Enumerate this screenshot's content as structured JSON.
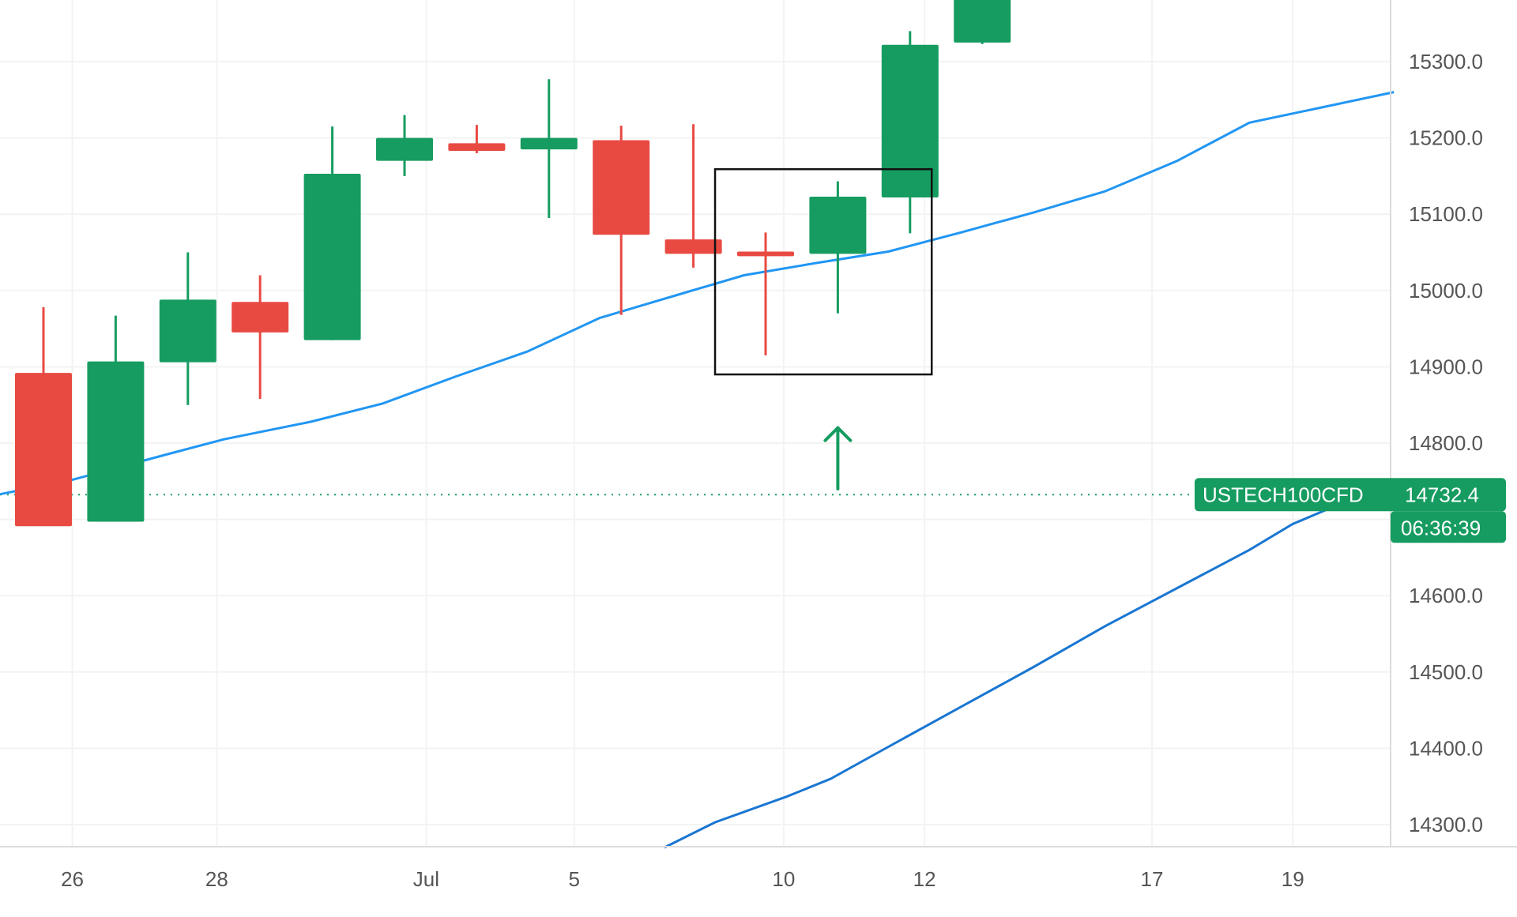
{
  "chart_data": {
    "type": "candlestick",
    "symbol": "USTECH100CFD",
    "last_price": 14732.4,
    "last_price_label": "14732.4",
    "countdown": "06:36:39",
    "ylim": [
      14270,
      15380
    ],
    "y_ticks": [
      14300,
      14400,
      14500,
      14600,
      14800,
      14900,
      15000,
      15100,
      15200,
      15300
    ],
    "y_tick_labels": [
      "14300.0",
      "14400.0",
      "14500.0",
      "14600.0",
      "14800.0",
      "14900.0",
      "15000.0",
      "15100.0",
      "15200.0",
      "15300.0"
    ],
    "x_ticks": [
      {
        "label": "26",
        "x": 0.4
      },
      {
        "label": "28",
        "x": 2.4
      },
      {
        "label": "Jul",
        "x": 5.3
      },
      {
        "label": "5",
        "x": 7.35
      },
      {
        "label": "10",
        "x": 10.25
      },
      {
        "label": "12",
        "x": 12.2
      },
      {
        "label": "17",
        "x": 15.35
      },
      {
        "label": "19",
        "x": 17.3
      }
    ],
    "candles": [
      {
        "x": 0,
        "open": 14892,
        "high": 14978,
        "low": 14694,
        "close": 14691
      },
      {
        "x": 1,
        "open": 14697,
        "high": 14967,
        "low": 14703,
        "close": 14907
      },
      {
        "x": 2,
        "open": 14906,
        "high": 15050,
        "low": 14850,
        "close": 14988
      },
      {
        "x": 3,
        "open": 14985,
        "high": 15020,
        "low": 14858,
        "close": 14945
      },
      {
        "x": 4,
        "open": 14935,
        "high": 15215,
        "low": 14935,
        "close": 15153
      },
      {
        "x": 5,
        "open": 15170,
        "high": 15230,
        "low": 15150,
        "close": 15200
      },
      {
        "x": 6,
        "open": 15193,
        "high": 15217,
        "low": 15180,
        "close": 15183
      },
      {
        "x": 7,
        "open": 15185,
        "high": 15277,
        "low": 15095,
        "close": 15200
      },
      {
        "x": 8,
        "open": 15197,
        "high": 15216,
        "low": 14968,
        "close": 15073
      },
      {
        "x": 9,
        "open": 15067,
        "high": 15218,
        "low": 15030,
        "close": 15048
      },
      {
        "x": 10,
        "open": 15051,
        "high": 15076,
        "low": 14915,
        "close": 15045
      },
      {
        "x": 11,
        "open": 15048,
        "high": 15143,
        "low": 14970,
        "close": 15123
      },
      {
        "x": 12,
        "open": 15122,
        "high": 15340,
        "low": 15075,
        "close": 15322
      },
      {
        "x": 13,
        "open": 15325,
        "high": 15400,
        "low": 15323,
        "close": 15400
      }
    ],
    "series": [
      {
        "color": "#2196f3",
        "points": [
          [
            -0.6,
            14733
          ],
          [
            0.4,
            14752
          ],
          [
            1.7,
            14785
          ],
          [
            2.5,
            14805
          ],
          [
            3.7,
            14828
          ],
          [
            4.7,
            14852
          ],
          [
            5.7,
            14887
          ],
          [
            6.7,
            14920
          ],
          [
            7.7,
            14964
          ],
          [
            8.7,
            14992
          ],
          [
            9.7,
            15020
          ],
          [
            10.7,
            15036
          ],
          [
            11.7,
            15051
          ],
          [
            12.7,
            15076
          ],
          [
            13.7,
            15102
          ],
          [
            14.7,
            15130
          ],
          [
            15.7,
            15170
          ],
          [
            16.7,
            15220
          ],
          [
            17.7,
            15240
          ],
          [
            18.7,
            15260
          ]
        ]
      },
      {
        "color": "#1976d2",
        "points": [
          [
            8.6,
            14270
          ],
          [
            9.3,
            14303
          ],
          [
            10.3,
            14337
          ],
          [
            10.9,
            14360
          ],
          [
            11.7,
            14402
          ],
          [
            12.7,
            14454
          ],
          [
            13.7,
            14506
          ],
          [
            14.7,
            14560
          ],
          [
            15.7,
            14610
          ],
          [
            16.7,
            14660
          ],
          [
            17.3,
            14694
          ],
          [
            18.7,
            14750
          ]
        ]
      }
    ],
    "annotations": {
      "box": {
        "x0": 9.3,
        "x1": 12.3,
        "y0": 14890,
        "y1": 15159
      },
      "arrow": {
        "x": 11,
        "y_from": 14740,
        "y_to": 14820,
        "direction": "up"
      }
    },
    "colors": {
      "up": "#169c60",
      "down": "#e84a42",
      "grid": "#f3f3f3",
      "axis": "#dcdcdc",
      "label_text": "#555555"
    }
  }
}
